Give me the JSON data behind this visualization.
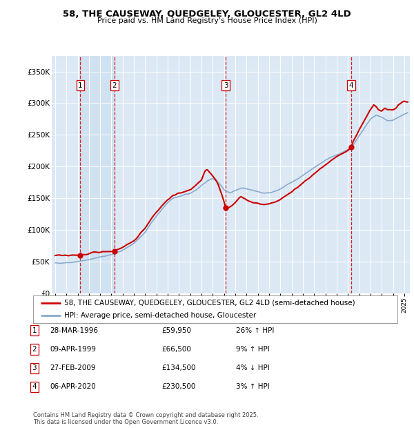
{
  "title": "58, THE CAUSEWAY, QUEDGELEY, GLOUCESTER, GL2 4LD",
  "subtitle": "Price paid vs. HM Land Registry's House Price Index (HPI)",
  "legend_line1": "58, THE CAUSEWAY, QUEDGELEY, GLOUCESTER, GL2 4LD (semi-detached house)",
  "legend_line2": "HPI: Average price, semi-detached house, Gloucester",
  "footnote1": "Contains HM Land Registry data © Crown copyright and database right 2025.",
  "footnote2": "This data is licensed under the Open Government Licence v3.0.",
  "yticks": [
    0,
    50000,
    100000,
    150000,
    200000,
    250000,
    300000,
    350000
  ],
  "ytick_labels": [
    "£0",
    "£50K",
    "£100K",
    "£150K",
    "£200K",
    "£250K",
    "£300K",
    "£350K"
  ],
  "ylim": [
    0,
    375000
  ],
  "xlim_start": 1993.7,
  "xlim_end": 2025.5,
  "background_color": "#ffffff",
  "plot_bg_color": "#dce9f5",
  "grid_color": "#ffffff",
  "sale_color": "#cc0000",
  "hpi_color": "#88aacc",
  "sale_dates": [
    1996.24,
    1999.27,
    2009.16,
    2020.27
  ],
  "sale_prices": [
    59950,
    66500,
    134500,
    230500
  ],
  "transaction_labels": [
    "1",
    "2",
    "3",
    "4"
  ],
  "transaction_info": [
    {
      "label": "1",
      "date": "28-MAR-1996",
      "price": "£59,950",
      "pct": "26% ↑ HPI"
    },
    {
      "label": "2",
      "date": "09-APR-1999",
      "price": "£66,500",
      "pct": "9% ↑ HPI"
    },
    {
      "label": "3",
      "date": "27-FEB-2009",
      "price": "£134,500",
      "pct": "4% ↓ HPI"
    },
    {
      "label": "4",
      "date": "06-APR-2020",
      "price": "£230,500",
      "pct": "3% ↑ HPI"
    }
  ]
}
